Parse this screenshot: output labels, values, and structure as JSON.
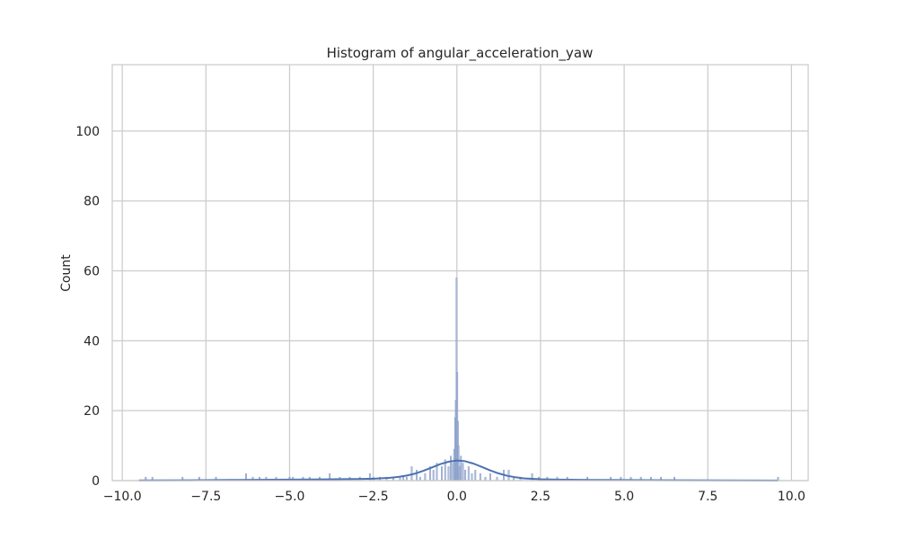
{
  "chart_data": {
    "type": "bar",
    "title": "Histogram of angular_acceleration_yaw",
    "xlabel": "",
    "ylabel": "Count",
    "xlim": [
      -10.3,
      10.5
    ],
    "ylim": [
      0,
      119
    ],
    "xticks": [
      -10.0,
      -7.5,
      -5.0,
      -2.5,
      0.0,
      2.5,
      5.0,
      7.5,
      10.0
    ],
    "xtick_labels": [
      "−10.0",
      "−7.5",
      "−5.0",
      "−2.5",
      "0.0",
      "2.5",
      "5.0",
      "7.5",
      "10.0"
    ],
    "yticks": [
      0,
      20,
      40,
      60,
      80,
      100
    ],
    "ytick_labels": [
      "0",
      "20",
      "40",
      "60",
      "80",
      "100"
    ],
    "grid": true,
    "colors": {
      "bar_fill": "#a3b4d6",
      "bar_edge": "#7f95c2",
      "kde_line": "#4c72b0",
      "grid": "#cccccc",
      "frame": "#cccccc"
    },
    "histogram": {
      "bins": [
        {
          "x": -9.3,
          "count": 1
        },
        {
          "x": -9.1,
          "count": 1
        },
        {
          "x": -8.2,
          "count": 1
        },
        {
          "x": -7.7,
          "count": 1
        },
        {
          "x": -7.2,
          "count": 1
        },
        {
          "x": -6.3,
          "count": 2
        },
        {
          "x": -6.1,
          "count": 1
        },
        {
          "x": -5.9,
          "count": 1
        },
        {
          "x": -5.7,
          "count": 1
        },
        {
          "x": -5.4,
          "count": 1
        },
        {
          "x": -5.0,
          "count": 1
        },
        {
          "x": -4.9,
          "count": 1
        },
        {
          "x": -4.6,
          "count": 1
        },
        {
          "x": -4.4,
          "count": 1
        },
        {
          "x": -4.1,
          "count": 1
        },
        {
          "x": -3.8,
          "count": 2
        },
        {
          "x": -3.5,
          "count": 1
        },
        {
          "x": -3.2,
          "count": 1
        },
        {
          "x": -2.9,
          "count": 1
        },
        {
          "x": -2.6,
          "count": 2
        },
        {
          "x": -2.5,
          "count": 1
        },
        {
          "x": -2.3,
          "count": 1
        },
        {
          "x": -2.1,
          "count": 1
        },
        {
          "x": -1.9,
          "count": 1
        },
        {
          "x": -1.7,
          "count": 1
        },
        {
          "x": -1.6,
          "count": 1
        },
        {
          "x": -1.5,
          "count": 1
        },
        {
          "x": -1.35,
          "count": 4
        },
        {
          "x": -1.2,
          "count": 3
        },
        {
          "x": -1.1,
          "count": 1
        },
        {
          "x": -0.95,
          "count": 2
        },
        {
          "x": -0.8,
          "count": 4
        },
        {
          "x": -0.7,
          "count": 3
        },
        {
          "x": -0.6,
          "count": 5
        },
        {
          "x": -0.45,
          "count": 4
        },
        {
          "x": -0.35,
          "count": 6
        },
        {
          "x": -0.25,
          "count": 4
        },
        {
          "x": -0.18,
          "count": 7
        },
        {
          "x": -0.12,
          "count": 5
        },
        {
          "x": -0.08,
          "count": 9
        },
        {
          "x": -0.05,
          "count": 18
        },
        {
          "x": -0.03,
          "count": 23
        },
        {
          "x": -0.01,
          "count": 58
        },
        {
          "x": 0.01,
          "count": 31
        },
        {
          "x": 0.03,
          "count": 17
        },
        {
          "x": 0.05,
          "count": 10
        },
        {
          "x": 0.08,
          "count": 4
        },
        {
          "x": 0.12,
          "count": 7
        },
        {
          "x": 0.18,
          "count": 5
        },
        {
          "x": 0.25,
          "count": 3
        },
        {
          "x": 0.35,
          "count": 4
        },
        {
          "x": 0.45,
          "count": 2
        },
        {
          "x": 0.55,
          "count": 3
        },
        {
          "x": 0.7,
          "count": 2
        },
        {
          "x": 0.85,
          "count": 1
        },
        {
          "x": 1.0,
          "count": 2
        },
        {
          "x": 1.2,
          "count": 1
        },
        {
          "x": 1.4,
          "count": 3
        },
        {
          "x": 1.55,
          "count": 3
        },
        {
          "x": 1.7,
          "count": 1
        },
        {
          "x": 1.9,
          "count": 1
        },
        {
          "x": 2.25,
          "count": 2
        },
        {
          "x": 2.45,
          "count": 1
        },
        {
          "x": 2.7,
          "count": 1
        },
        {
          "x": 3.0,
          "count": 1
        },
        {
          "x": 3.3,
          "count": 1
        },
        {
          "x": 3.9,
          "count": 1
        },
        {
          "x": 4.6,
          "count": 1
        },
        {
          "x": 4.9,
          "count": 1
        },
        {
          "x": 5.2,
          "count": 1
        },
        {
          "x": 5.5,
          "count": 1
        },
        {
          "x": 5.8,
          "count": 1
        },
        {
          "x": 6.1,
          "count": 1
        },
        {
          "x": 6.5,
          "count": 1
        },
        {
          "x": 9.6,
          "count": 1
        }
      ],
      "bin_width": 0.04
    },
    "kde": {
      "x": [
        -9.5,
        -8.0,
        -6.5,
        -5.0,
        -4.0,
        -3.0,
        -2.5,
        -2.0,
        -1.75,
        -1.5,
        -1.25,
        -1.0,
        -0.75,
        -0.5,
        -0.25,
        0.0,
        0.25,
        0.5,
        0.75,
        1.0,
        1.25,
        1.5,
        1.75,
        2.0,
        2.5,
        3.0,
        4.0,
        5.0,
        6.5,
        8.0,
        9.6
      ],
      "y": [
        0.05,
        0.1,
        0.2,
        0.3,
        0.35,
        0.45,
        0.55,
        0.8,
        1.05,
        1.45,
        2.0,
        2.8,
        3.75,
        4.7,
        5.4,
        5.75,
        5.55,
        4.85,
        3.9,
        2.9,
        2.05,
        1.4,
        0.95,
        0.65,
        0.4,
        0.3,
        0.2,
        0.15,
        0.1,
        0.05,
        0.03
      ]
    }
  }
}
